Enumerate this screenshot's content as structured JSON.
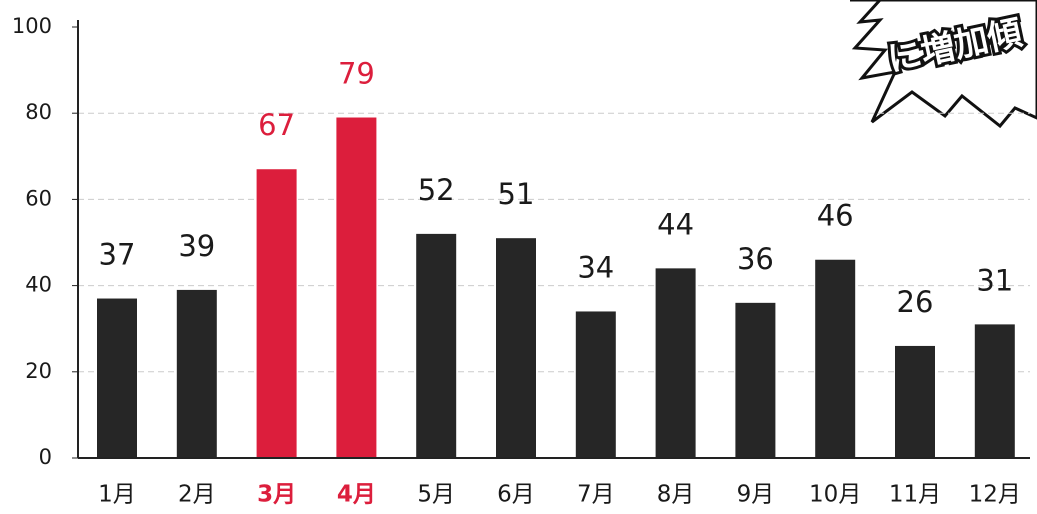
{
  "chart_data": {
    "type": "bar",
    "annotation": "に増加傾",
    "categories": [
      "1月",
      "2月",
      "3月",
      "4月",
      "5月",
      "6月",
      "7月",
      "8月",
      "9月",
      "10月",
      "11月",
      "12月"
    ],
    "values": [
      37,
      39,
      67,
      79,
      52,
      51,
      34,
      44,
      36,
      46,
      26,
      31
    ],
    "color": "#262626",
    "highlight_color": "#dc1e3c",
    "highlighted": [
      "3月",
      "4月"
    ],
    "ylim": [
      0,
      100
    ],
    "yticks": [
      0,
      20,
      40,
      60,
      80,
      100
    ],
    "grid": true
  }
}
